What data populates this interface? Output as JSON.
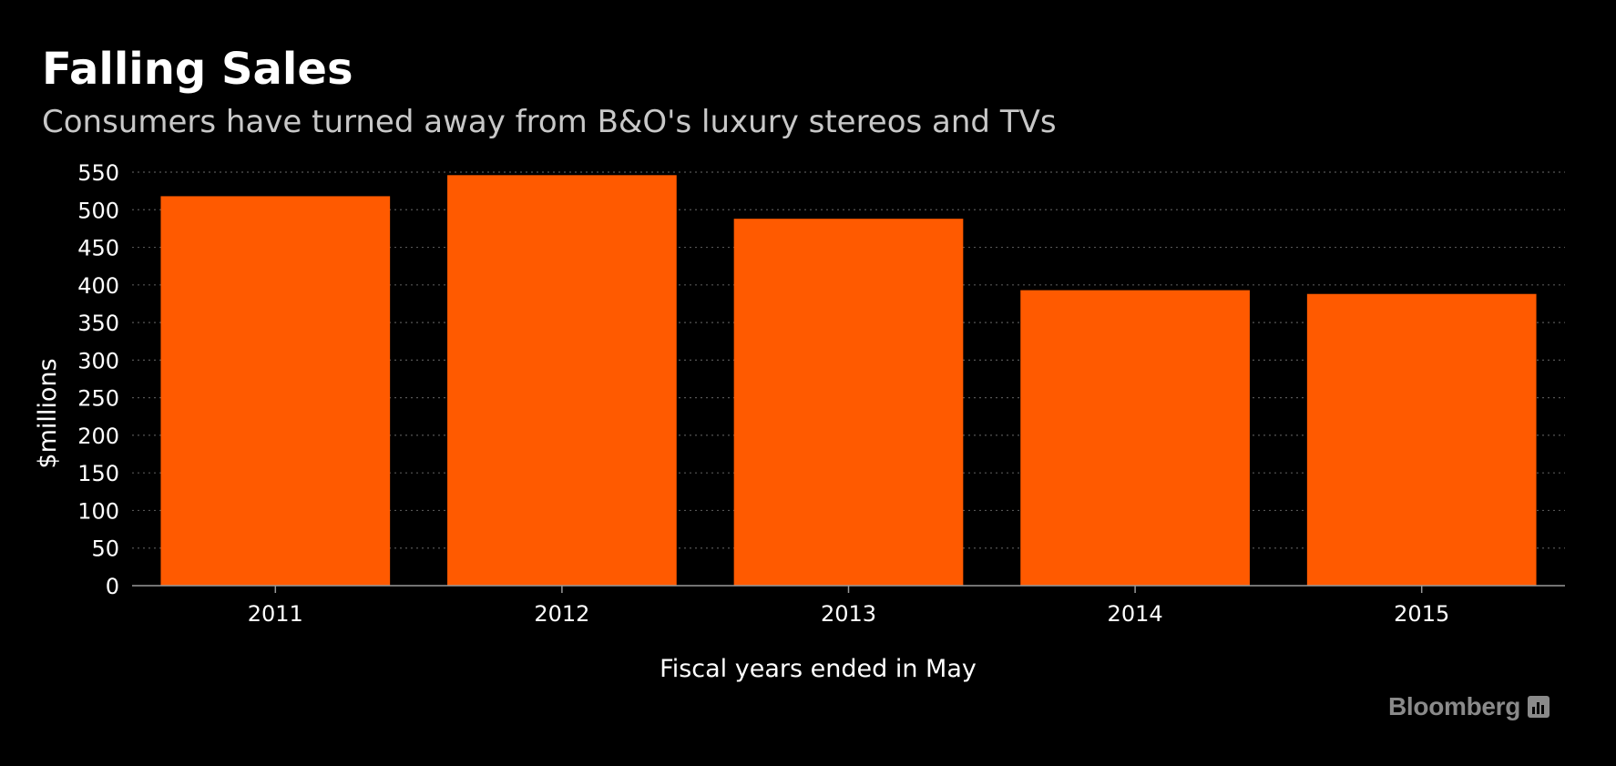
{
  "header": {
    "title": "Falling Sales",
    "subtitle": "Consumers have turned away from B&O's luxury stereos and TVs"
  },
  "brand": {
    "logo_text": "Bloomberg",
    "icon": "bloomberg-chart-icon"
  },
  "colors": {
    "bar": "#ff5a00",
    "background": "#000000",
    "grid": "#555555",
    "axis": "#999999"
  },
  "chart_data": {
    "type": "bar",
    "title": "Falling Sales",
    "subtitle": "Consumers have turned away from B&O's luxury stereos and TVs",
    "categories": [
      "2011",
      "2012",
      "2013",
      "2014",
      "2015"
    ],
    "values": [
      518,
      546,
      488,
      393,
      388
    ],
    "xlabel": "Fiscal years ended in May",
    "ylabel": "$millions",
    "ylim": [
      0,
      550
    ],
    "yticks": [
      0,
      50,
      100,
      150,
      200,
      250,
      300,
      350,
      400,
      450,
      500,
      550
    ],
    "grid": true,
    "grid_style": "dotted",
    "legend": "none"
  }
}
